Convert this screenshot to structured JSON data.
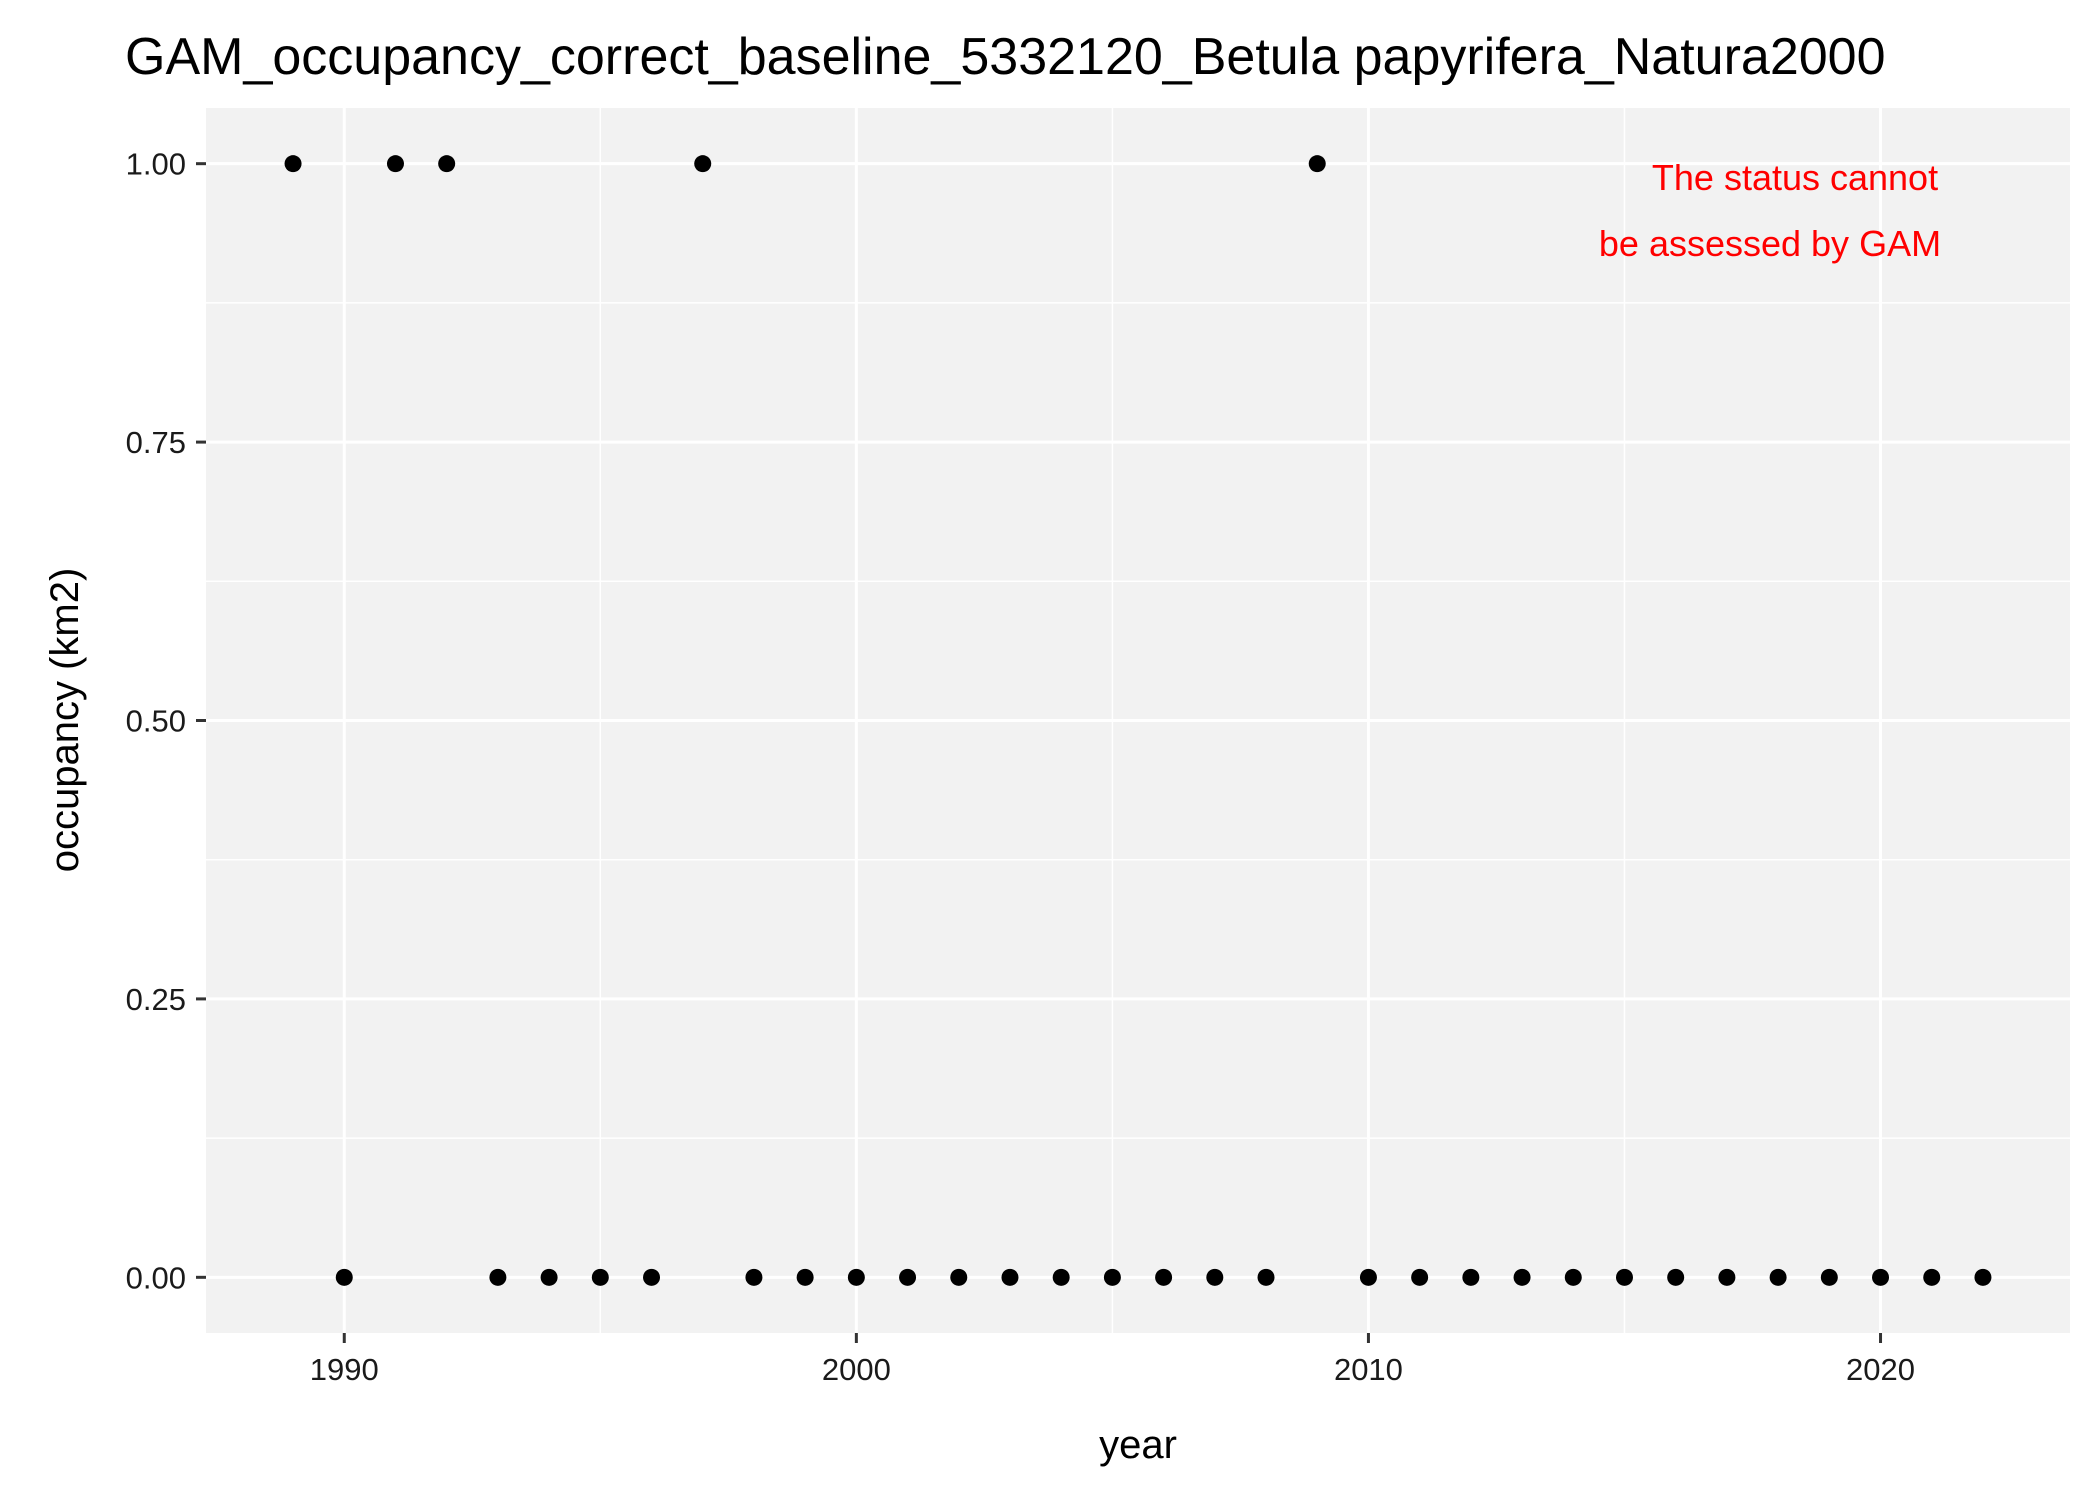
{
  "chart_data": {
    "type": "scatter",
    "title": "GAM_occupancy_correct_baseline_5332120_Betula papyrifera_Natura2000",
    "xlabel": "year",
    "ylabel": "occupancy (km2)",
    "xlim": [
      1987.3,
      2023.7
    ],
    "ylim": [
      -0.05,
      1.05
    ],
    "x_ticks": [
      1990,
      2000,
      2010,
      2020
    ],
    "x_tick_labels": [
      "1990",
      "2000",
      "2010",
      "2020"
    ],
    "x_minor_ticks": [
      1995,
      2005,
      2015
    ],
    "y_ticks": [
      0,
      0.25,
      0.5,
      0.75,
      1.0
    ],
    "y_tick_labels": [
      "0.00",
      "0.25",
      "0.50",
      "0.75",
      "1.00"
    ],
    "y_minor_ticks": [
      0.125,
      0.375,
      0.625,
      0.875
    ],
    "grid": true,
    "legend": "none",
    "point_color": "#000000",
    "panel_background": "#f2f2f2",
    "grid_color": "#ffffff",
    "annotation": {
      "lines": [
        "The status cannot",
        "be assessed by GAM"
      ],
      "color": "#ff0000",
      "position": "top-right"
    },
    "points": [
      {
        "x": 1989,
        "y": 1
      },
      {
        "x": 1990,
        "y": 0
      },
      {
        "x": 1991,
        "y": 1
      },
      {
        "x": 1992,
        "y": 1
      },
      {
        "x": 1993,
        "y": 0
      },
      {
        "x": 1994,
        "y": 0
      },
      {
        "x": 1995,
        "y": 0
      },
      {
        "x": 1996,
        "y": 0
      },
      {
        "x": 1997,
        "y": 1
      },
      {
        "x": 1998,
        "y": 0
      },
      {
        "x": 1999,
        "y": 0
      },
      {
        "x": 2000,
        "y": 0
      },
      {
        "x": 2001,
        "y": 0
      },
      {
        "x": 2002,
        "y": 0
      },
      {
        "x": 2003,
        "y": 0
      },
      {
        "x": 2004,
        "y": 0
      },
      {
        "x": 2005,
        "y": 0
      },
      {
        "x": 2006,
        "y": 0
      },
      {
        "x": 2007,
        "y": 0
      },
      {
        "x": 2008,
        "y": 0
      },
      {
        "x": 2009,
        "y": 1
      },
      {
        "x": 2010,
        "y": 0
      },
      {
        "x": 2011,
        "y": 0
      },
      {
        "x": 2012,
        "y": 0
      },
      {
        "x": 2013,
        "y": 0
      },
      {
        "x": 2014,
        "y": 0
      },
      {
        "x": 2015,
        "y": 0
      },
      {
        "x": 2016,
        "y": 0
      },
      {
        "x": 2017,
        "y": 0
      },
      {
        "x": 2018,
        "y": 0
      },
      {
        "x": 2019,
        "y": 0
      },
      {
        "x": 2020,
        "y": 0
      },
      {
        "x": 2021,
        "y": 0
      },
      {
        "x": 2022,
        "y": 0
      }
    ]
  }
}
